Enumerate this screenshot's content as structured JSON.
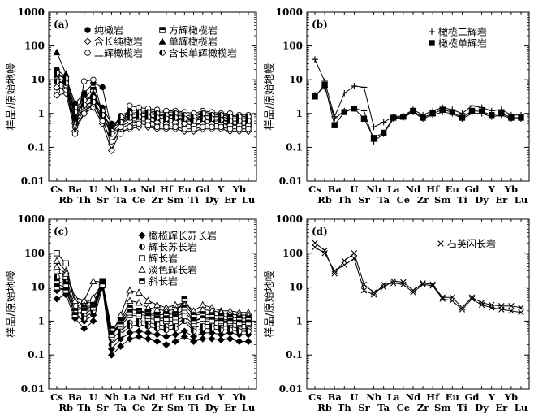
{
  "chart_data": [
    {
      "type": "line",
      "panel_label": "(a)",
      "ylabel": "样品/原始地幔",
      "yscale": "log",
      "ylim": [
        0.01,
        1000
      ],
      "ytick_labels": [
        "0.01",
        "0.1",
        "1",
        "10",
        "100",
        "1000"
      ],
      "categories": [
        "Cs",
        "Rb",
        "Ba",
        "Th",
        "U",
        "Sr",
        "Nb",
        "Ta",
        "La",
        "Ce",
        "Nd",
        "Zr",
        "Hf",
        "Sm",
        "Eu",
        "Ti",
        "Gd",
        "Dy",
        "Y",
        "Er",
        "Yb",
        "Lu"
      ],
      "legend": [
        {
          "label": "纯橄岩",
          "marker": "circle-filled"
        },
        {
          "label": "方辉橄榄岩",
          "marker": "square-half"
        },
        {
          "label": "含长纯橄岩",
          "marker": "diamond-open"
        },
        {
          "label": "单辉橄榄岩",
          "marker": "triangle-filled"
        },
        {
          "label": "二辉橄榄岩",
          "marker": "circle-open"
        },
        {
          "label": "含长单辉橄榄岩",
          "marker": "circle-half"
        }
      ],
      "series": [
        {
          "marker": "circle-filled",
          "values": [
            20,
            12,
            2.0,
            4.0,
            8,
            6.0,
            0.35,
            0.85,
            1.2,
            1.3,
            1.2,
            1.1,
            1.1,
            1.1,
            1.0,
            0.9,
            1.1,
            1.0,
            0.9,
            0.9,
            0.8,
            0.8
          ]
        },
        {
          "marker": "circle-filled",
          "values": [
            12,
            8,
            0.8,
            2.5,
            3,
            1.5,
            0.5,
            0.6,
            0.9,
            1.0,
            1.0,
            0.9,
            0.8,
            0.9,
            0.8,
            0.6,
            0.9,
            0.8,
            0.8,
            0.7,
            0.7,
            0.7
          ]
        },
        {
          "marker": "square-half",
          "values": [
            8,
            9,
            1.0,
            3.0,
            5,
            1.0,
            0.4,
            0.5,
            0.7,
            0.8,
            0.8,
            0.7,
            0.7,
            0.7,
            0.6,
            0.6,
            0.7,
            0.6,
            0.6,
            0.6,
            0.6,
            0.6
          ]
        },
        {
          "marker": "square-half",
          "values": [
            5,
            6,
            0.6,
            1.5,
            2.5,
            0.8,
            0.3,
            0.35,
            0.5,
            0.6,
            0.6,
            0.55,
            0.5,
            0.55,
            0.5,
            0.45,
            0.55,
            0.5,
            0.5,
            0.5,
            0.45,
            0.45
          ]
        },
        {
          "marker": "diamond-open",
          "values": [
            3.5,
            4,
            0.3,
            1.0,
            1.5,
            0.5,
            0.08,
            0.3,
            0.35,
            0.4,
            0.4,
            0.35,
            0.35,
            0.35,
            0.3,
            0.3,
            0.35,
            0.35,
            0.35,
            0.3,
            0.3,
            0.3
          ]
        },
        {
          "marker": "diamond-open",
          "values": [
            6,
            5,
            0.5,
            1.2,
            2,
            0.7,
            0.12,
            0.4,
            0.6,
            0.6,
            0.6,
            0.55,
            0.5,
            0.55,
            0.5,
            0.45,
            0.5,
            0.5,
            0.5,
            0.45,
            0.45,
            0.45
          ]
        },
        {
          "marker": "triangle-filled",
          "values": [
            65,
            15,
            0.9,
            2.0,
            4,
            1.0,
            0.4,
            0.7,
            0.9,
            1.0,
            1.0,
            0.9,
            0.9,
            0.9,
            0.8,
            0.7,
            0.9,
            0.8,
            0.8,
            0.7,
            0.7,
            0.7
          ]
        },
        {
          "marker": "circle-open",
          "values": [
            15,
            10,
            0.4,
            1.0,
            2,
            0.6,
            0.15,
            0.25,
            0.4,
            0.5,
            0.45,
            0.4,
            0.4,
            0.4,
            0.35,
            0.35,
            0.4,
            0.4,
            0.4,
            0.35,
            0.35,
            0.35
          ]
        },
        {
          "marker": "circle-open",
          "values": [
            10,
            7,
            0.25,
            9,
            10,
            1.0,
            0.2,
            0.4,
            1.7,
            1.5,
            1.4,
            1.3,
            1.2,
            1.2,
            1.1,
            1.0,
            1.2,
            1.1,
            1.0,
            1.0,
            0.9,
            0.9
          ]
        },
        {
          "marker": "circle-half",
          "values": [
            16,
            11,
            1.5,
            2.5,
            3,
            1.2,
            0.3,
            0.8,
            1.0,
            1.1,
            1.1,
            1.0,
            0.9,
            1.0,
            0.9,
            0.8,
            1.0,
            0.9,
            0.9,
            0.8,
            0.8,
            0.8
          ]
        },
        {
          "marker": "circle-half",
          "values": [
            9,
            8,
            1.1,
            1.8,
            2.2,
            0.9,
            0.25,
            0.55,
            0.75,
            0.8,
            0.8,
            0.75,
            0.7,
            0.75,
            0.7,
            0.6,
            0.7,
            0.7,
            0.65,
            0.6,
            0.6,
            0.6
          ]
        }
      ]
    },
    {
      "type": "line",
      "panel_label": "(b)",
      "ylabel": "样品/原始地幔",
      "yscale": "log",
      "ylim": [
        0.01,
        1000
      ],
      "ytick_labels": [
        "0.01",
        "0.1",
        "1",
        "10",
        "100",
        "1000"
      ],
      "categories": [
        "Cs",
        "Rb",
        "Ba",
        "Th",
        "U",
        "Sr",
        "Nb",
        "Ta",
        "La",
        "Ce",
        "Nd",
        "Zr",
        "Hf",
        "Sm",
        "Eu",
        "Ti",
        "Gd",
        "Dy",
        "Y",
        "Er",
        "Yb",
        "Lu"
      ],
      "legend": [
        {
          "label": "橄榄二辉岩",
          "marker": "plus"
        },
        {
          "label": "橄榄单辉岩",
          "marker": "square-filled"
        }
      ],
      "series": [
        {
          "marker": "plus",
          "values": [
            40,
            9,
            0.8,
            4,
            6.5,
            6,
            0.4,
            0.55,
            0.8,
            0.85,
            1.3,
            0.9,
            1.2,
            1.5,
            1.3,
            1.0,
            1.7,
            1.5,
            1.2,
            1.3,
            0.9,
            0.9
          ]
        },
        {
          "marker": "plus",
          "values": [
            3.5,
            6,
            0.7,
            1.2,
            1.4,
            1.2,
            0.15,
            0.25,
            0.7,
            0.75,
            1.1,
            0.7,
            0.9,
            1.1,
            1.0,
            0.7,
            1.0,
            1.0,
            0.8,
            0.9,
            0.7,
            0.7
          ]
        },
        {
          "marker": "square-filled",
          "values": [
            3.2,
            7,
            0.45,
            1.1,
            1.4,
            0.7,
            0.19,
            0.27,
            0.75,
            0.8,
            1.2,
            0.75,
            1.0,
            1.3,
            1.1,
            0.75,
            1.2,
            1.15,
            0.9,
            1.0,
            0.75,
            0.75
          ]
        }
      ]
    },
    {
      "type": "line",
      "panel_label": "(c)",
      "ylabel": "样品/原始地幔",
      "yscale": "log",
      "ylim": [
        0.01,
        1000
      ],
      "ytick_labels": [
        "0.01",
        "0.1",
        "1",
        "10",
        "100",
        "1000"
      ],
      "categories": [
        "Cs",
        "Rb",
        "Ba",
        "Th",
        "U",
        "Sr",
        "Nb",
        "Ta",
        "La",
        "Ce",
        "Nd",
        "Zr",
        "Hf",
        "Sm",
        "Eu",
        "Ti",
        "Gd",
        "Dy",
        "Y",
        "Er",
        "Yb",
        "Lu"
      ],
      "legend": [
        {
          "label": "橄榄辉长苏长岩",
          "marker": "diamond-filled"
        },
        {
          "label": "辉长苏长岩",
          "marker": "circle-half"
        },
        {
          "label": "辉长岩",
          "marker": "square-open"
        },
        {
          "label": "淡色辉长岩",
          "marker": "triangle-open"
        },
        {
          "label": "斜长岩",
          "marker": "square-half"
        }
      ],
      "series": [
        {
          "marker": "diamond-filled",
          "values": [
            4.5,
            6,
            1.2,
            0.6,
            1.0,
            10,
            0.1,
            0.18,
            0.3,
            0.35,
            0.3,
            0.25,
            0.2,
            0.25,
            0.35,
            0.25,
            0.3,
            0.3,
            0.28,
            0.3,
            0.25,
            0.25
          ]
        },
        {
          "marker": "diamond-filled",
          "values": [
            8,
            9,
            1.5,
            1.0,
            1.5,
            12,
            0.15,
            0.3,
            0.45,
            0.5,
            0.45,
            0.4,
            0.35,
            0.4,
            0.5,
            0.35,
            0.45,
            0.45,
            0.4,
            0.45,
            0.4,
            0.4
          ]
        },
        {
          "marker": "circle-half",
          "values": [
            20,
            15,
            2,
            1.5,
            2.5,
            14,
            0.3,
            0.5,
            0.9,
            1.0,
            0.9,
            0.8,
            0.7,
            0.8,
            1.2,
            0.6,
            0.8,
            0.8,
            0.7,
            0.7,
            0.6,
            0.6
          ]
        },
        {
          "marker": "circle-half",
          "values": [
            12,
            10,
            1.5,
            1.2,
            2.0,
            12,
            0.2,
            0.4,
            0.7,
            0.8,
            0.7,
            0.6,
            0.55,
            0.6,
            1.0,
            0.5,
            0.6,
            0.6,
            0.55,
            0.55,
            0.5,
            0.5
          ]
        },
        {
          "marker": "square-open",
          "values": [
            100,
            50,
            3,
            2,
            3,
            15,
            0.5,
            0.8,
            2.2,
            2.0,
            1.6,
            1.4,
            1.2,
            1.3,
            1.8,
            1.0,
            1.3,
            1.2,
            1.1,
            1.1,
            1.0,
            1.0
          ]
        },
        {
          "marker": "square-open",
          "values": [
            30,
            20,
            2.5,
            3.5,
            3.5,
            13,
            0.4,
            0.7,
            1.5,
            1.4,
            1.2,
            1.1,
            1.0,
            1.0,
            1.4,
            0.8,
            1.0,
            1.0,
            0.9,
            0.9,
            0.8,
            0.8
          ]
        },
        {
          "marker": "triangle-open",
          "values": [
            60,
            30,
            5,
            4,
            15,
            14,
            0.4,
            1.5,
            8,
            7,
            4,
            3,
            2.5,
            3,
            3.5,
            2,
            3,
            2.5,
            2,
            2,
            1.8,
            1.8
          ]
        },
        {
          "marker": "triangle-open",
          "values": [
            40,
            25,
            4,
            3,
            5,
            13,
            0.35,
            1.0,
            4,
            3.5,
            2.5,
            2.2,
            2,
            2.2,
            3,
            1.5,
            2.2,
            2,
            1.8,
            1.6,
            1.5,
            1.5
          ]
        },
        {
          "marker": "square-half",
          "values": [
            15,
            12,
            2,
            2.5,
            3,
            14,
            0.6,
            1.0,
            2.5,
            2.0,
            1.8,
            1.5,
            1.6,
            1.6,
            4.5,
            1.5,
            1.6,
            1.5,
            1.4,
            1.3,
            1.2,
            1.2
          ]
        },
        {
          "marker": "square-half",
          "values": [
            10,
            8,
            1.5,
            2.0,
            2.5,
            12,
            0.4,
            0.8,
            1.8,
            1.6,
            1.4,
            1.2,
            1.2,
            1.3,
            2.5,
            1.0,
            1.2,
            1.1,
            1.0,
            1.0,
            0.9,
            0.9
          ]
        }
      ]
    },
    {
      "type": "line",
      "panel_label": "(d)",
      "ylabel": "样品/原始地幔",
      "yscale": "log",
      "ylim": [
        0.01,
        1000
      ],
      "ytick_labels": [
        "0.01",
        "0.1",
        "1",
        "10",
        "100",
        "1000"
      ],
      "categories": [
        "Cs",
        "Rb",
        "Ba",
        "Th",
        "U",
        "Sr",
        "Nb",
        "Ta",
        "La",
        "Ce",
        "Nd",
        "Zr",
        "Hf",
        "Sm",
        "Eu",
        "Ti",
        "Gd",
        "Dy",
        "Y",
        "Er",
        "Yb",
        "Lu"
      ],
      "legend": [
        {
          "label": "石英闪长岩",
          "marker": "x"
        }
      ],
      "series": [
        {
          "marker": "x",
          "values": [
            200,
            120,
            25,
            60,
            100,
            12,
            7,
            10,
            15,
            14,
            8,
            13,
            12,
            5,
            5,
            2.5,
            5,
            3.5,
            3,
            2.8,
            2.8,
            2.5
          ]
        },
        {
          "marker": "x",
          "values": [
            150,
            100,
            30,
            45,
            70,
            8,
            6,
            12,
            13,
            12,
            7,
            12,
            11,
            4.5,
            4,
            2.2,
            4.5,
            3,
            2.5,
            2.2,
            2,
            1.8
          ]
        }
      ]
    }
  ]
}
